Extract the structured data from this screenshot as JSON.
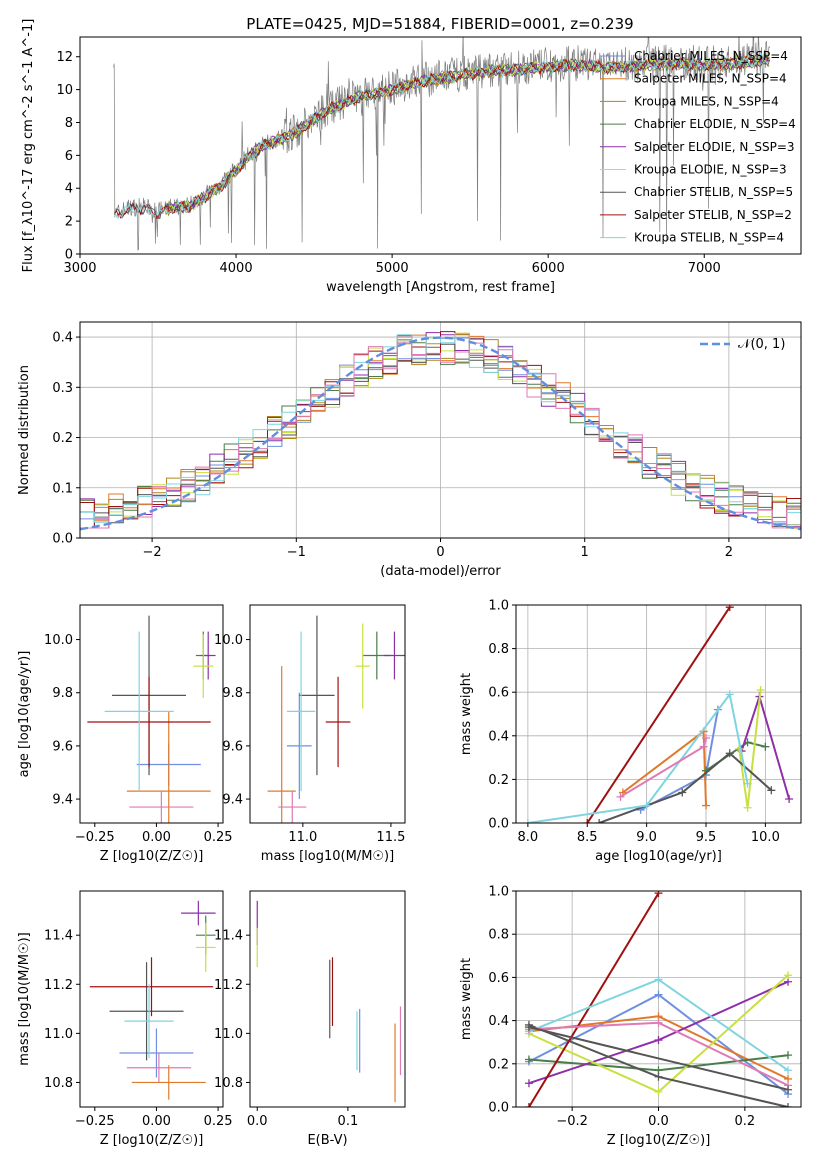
{
  "figure_title": "PLATE=0425, MJD=51884, FIBERID=0001, z=0.239",
  "colors": {
    "models": [
      "#6f8fe0",
      "#e07a2a",
      "#b0861c",
      "#4a7d4a",
      "#8e2fa8",
      "#c8e040",
      "#555555",
      "#a01010",
      "#7fd4e0"
    ],
    "data_gray": "#7f7f7f",
    "normal": "#5f8fe0",
    "pink": "#e07ab4"
  },
  "chart_data": [
    {
      "id": "spectrum",
      "type": "line",
      "title": "PLATE=0425, MJD=51884, FIBERID=0001, z=0.239",
      "xlabel": "wavelength [Angstrom, rest frame]",
      "ylabel": "Flux [f_λ10^-17 erg cm^-2 s^-1 A^-1]",
      "xlim": [
        3000,
        7620
      ],
      "ylim": [
        0,
        13.2
      ],
      "xticks": [
        "3000",
        "4000",
        "5000",
        "6000",
        "7000"
      ],
      "yticks": [
        "0",
        "2",
        "4",
        "6",
        "8",
        "10",
        "12"
      ],
      "legend_placement": "upper-right",
      "series": [
        {
          "name": "Chabrier MILES, N_SSP=4"
        },
        {
          "name": "Salpeter MILES, N_SSP=4"
        },
        {
          "name": "Kroupa MILES, N_SSP=4"
        },
        {
          "name": "Chabrier ELODIE, N_SSP=4"
        },
        {
          "name": "Salpeter ELODIE, N_SSP=3"
        },
        {
          "name": "Kroupa ELODIE, N_SSP=3"
        },
        {
          "name": "Chabrier STELIB, N_SSP=5"
        },
        {
          "name": "Salpeter STELIB, N_SSP=2"
        },
        {
          "name": "Kroupa STELIB, N_SSP=4"
        }
      ],
      "continuum": {
        "x": [
          3220,
          3300,
          3400,
          3500,
          3600,
          3700,
          3800,
          3900,
          4000,
          4100,
          4200,
          4300,
          4400,
          4500,
          4600,
          4800,
          5000,
          5200,
          5400,
          5600,
          5800,
          6000,
          6200,
          6400,
          6600,
          6800,
          7000,
          7200,
          7400
        ],
        "y": [
          2.4,
          2.8,
          2.9,
          2.6,
          2.9,
          3.0,
          3.6,
          4.2,
          5.2,
          6.2,
          6.8,
          7.1,
          7.6,
          8.3,
          8.9,
          9.7,
          10.1,
          10.6,
          10.9,
          11.2,
          11.3,
          11.5,
          11.6,
          11.4,
          11.6,
          11.7,
          11.6,
          11.7,
          11.9
        ]
      },
      "grid": false
    },
    {
      "id": "residuals",
      "type": "histogram",
      "xlabel": "(data-model)/error",
      "ylabel": "Normed distribution",
      "xlim": [
        -2.5,
        2.5
      ],
      "ylim": [
        0,
        0.43
      ],
      "xticks": [
        "−2",
        "−1",
        "0",
        "1",
        "2"
      ],
      "yticks": [
        "0.0",
        "0.1",
        "0.2",
        "0.3",
        "0.4"
      ],
      "legend": "𝒩(0, 1)",
      "legend_placement": "upper-right",
      "grid": true
    },
    {
      "id": "age_vs_Z",
      "type": "scatter",
      "xlabel": "Z [log10(Z/Z☉)]",
      "ylabel": "age  [log10(age/yr)]",
      "xlim": [
        -0.31,
        0.27
      ],
      "ylim": [
        9.31,
        10.13
      ],
      "xticks": [
        "−0.25",
        "0.00",
        "0.25"
      ],
      "yticks": [
        "9.4",
        "9.6",
        "9.8",
        "10.0"
      ],
      "points": [
        {
          "x": 0.05,
          "y": 9.53,
          "xe": 0.13,
          "ye": 0.08,
          "c": 0
        },
        {
          "x": 0.05,
          "y": 9.43,
          "xe": 0.17,
          "ye": 0.3,
          "c": 1
        },
        {
          "x": 0.19,
          "y": 9.94,
          "xe": 0.03,
          "ye": 0.09,
          "c": 3
        },
        {
          "x": 0.21,
          "y": 9.94,
          "xe": 0.03,
          "ye": 0.09,
          "c": 4
        },
        {
          "x": 0.19,
          "y": 9.9,
          "xe": 0.04,
          "ye": 0.12,
          "c": 5
        },
        {
          "x": -0.03,
          "y": 9.79,
          "xe": 0.15,
          "ye": 0.3,
          "c": 6
        },
        {
          "x": -0.03,
          "y": 9.69,
          "xe": 0.25,
          "ye": 0.17,
          "c": 7
        },
        {
          "x": -0.07,
          "y": 9.73,
          "xe": 0.14,
          "ye": 0.3,
          "c": 8
        },
        {
          "x": 0.02,
          "y": 9.37,
          "xe": 0.13,
          "ye": 0.06,
          "c": 9
        }
      ]
    },
    {
      "id": "age_vs_mass",
      "type": "scatter",
      "xlabel": "mass [log10(M/M☉)]",
      "ylabel": "",
      "xlim": [
        10.7,
        11.58
      ],
      "ylim": [
        9.31,
        10.13
      ],
      "xticks": [
        "11.0",
        "11.5"
      ],
      "yticks": [
        "9.4",
        "9.6",
        "9.8",
        "10.0"
      ],
      "points": [
        {
          "x": 10.98,
          "y": 9.6,
          "xe": 0.07,
          "ye": 0.2,
          "c": 0
        },
        {
          "x": 10.88,
          "y": 9.43,
          "xe": 0.08,
          "ye": 0.47,
          "c": 1
        },
        {
          "x": 11.42,
          "y": 9.94,
          "xe": 0.08,
          "ye": 0.09,
          "c": 3
        },
        {
          "x": 11.52,
          "y": 9.94,
          "xe": 0.06,
          "ye": 0.09,
          "c": 4
        },
        {
          "x": 11.34,
          "y": 9.9,
          "xe": 0.04,
          "ye": 0.16,
          "c": 5
        },
        {
          "x": 11.08,
          "y": 9.79,
          "xe": 0.1,
          "ye": 0.3,
          "c": 6
        },
        {
          "x": 11.2,
          "y": 9.69,
          "xe": 0.07,
          "ye": 0.17,
          "c": 7
        },
        {
          "x": 10.99,
          "y": 9.73,
          "xe": 0.08,
          "ye": 0.3,
          "c": 8
        },
        {
          "x": 10.94,
          "y": 9.37,
          "xe": 0.08,
          "ye": 0.06,
          "c": 9
        }
      ]
    },
    {
      "id": "weight_vs_age",
      "type": "line",
      "xlabel": "age  [log10(age/yr)]",
      "ylabel": "mass weight",
      "xlim": [
        7.9,
        10.3
      ],
      "ylim": [
        0,
        1.0
      ],
      "xticks": [
        "8.0",
        "8.5",
        "9.0",
        "9.5",
        "10.0"
      ],
      "yticks": [
        "0.0",
        "0.2",
        "0.4",
        "0.6",
        "0.8",
        "1.0"
      ],
      "grid": true,
      "series": [
        {
          "c": 0,
          "x": [
            8.95,
            9.5,
            9.6
          ],
          "y": [
            0.06,
            0.22,
            0.52
          ]
        },
        {
          "c": 1,
          "x": [
            8.8,
            9.48,
            9.5
          ],
          "y": [
            0.14,
            0.42,
            0.08
          ]
        },
        {
          "c": 3,
          "x": [
            9.5,
            9.85,
            10.0
          ],
          "y": [
            0.24,
            0.37,
            0.35
          ]
        },
        {
          "c": 4,
          "x": [
            9.8,
            9.95,
            10.2
          ],
          "y": [
            0.33,
            0.58,
            0.11
          ]
        },
        {
          "c": 5,
          "x": [
            9.78,
            9.85,
            9.96
          ],
          "y": [
            0.34,
            0.07,
            0.61
          ]
        },
        {
          "c": 6,
          "x": [
            8.6,
            9.3,
            9.7,
            10.05
          ],
          "y": [
            0.0,
            0.14,
            0.32,
            0.15
          ]
        },
        {
          "c": 7,
          "x": [
            8.5,
            9.7
          ],
          "y": [
            0.0,
            0.99
          ]
        },
        {
          "c": 8,
          "x": [
            8.0,
            9.0,
            9.7,
            9.85
          ],
          "y": [
            0.0,
            0.08,
            0.59,
            0.18
          ]
        },
        {
          "c": 9,
          "x": [
            8.78,
            9.48,
            9.5
          ],
          "y": [
            0.12,
            0.35,
            0.39
          ]
        }
      ]
    },
    {
      "id": "mass_vs_Z",
      "type": "scatter",
      "xlabel": "Z [log10(Z/Z☉)]",
      "ylabel": "mass [log10(M/M☉)]",
      "xlim": [
        -0.31,
        0.27
      ],
      "ylim": [
        10.7,
        11.58
      ],
      "xticks": [
        "−0.25",
        "0.00",
        "0.25"
      ],
      "yticks": [
        "10.8",
        "11.0",
        "11.2",
        "11.4"
      ],
      "points": [
        {
          "x": 0.0,
          "y": 10.92,
          "xe": 0.15,
          "ye": 0.1,
          "c": 0
        },
        {
          "x": 0.05,
          "y": 10.8,
          "xe": 0.15,
          "ye": 0.07,
          "c": 1
        },
        {
          "x": 0.2,
          "y": 11.4,
          "xe": 0.04,
          "ye": 0.08,
          "c": 3
        },
        {
          "x": 0.17,
          "y": 11.49,
          "xe": 0.07,
          "ye": 0.05,
          "c": 4
        },
        {
          "x": 0.2,
          "y": 11.35,
          "xe": 0.04,
          "ye": 0.1,
          "c": 5
        },
        {
          "x": -0.04,
          "y": 11.09,
          "xe": 0.15,
          "ye": 0.2,
          "c": 6
        },
        {
          "x": -0.02,
          "y": 11.19,
          "xe": 0.25,
          "ye": 0.12,
          "c": 7
        },
        {
          "x": -0.03,
          "y": 11.05,
          "xe": 0.1,
          "ye": 0.15,
          "c": 8
        },
        {
          "x": 0.01,
          "y": 10.86,
          "xe": 0.13,
          "ye": 0.06,
          "c": 9
        }
      ]
    },
    {
      "id": "mass_vs_ebv",
      "type": "scatter",
      "xlabel": "E(B-V)",
      "ylabel": "",
      "xlim": [
        -0.008,
        0.163
      ],
      "ylim": [
        10.7,
        11.58
      ],
      "xticks": [
        "0.0",
        "0.1"
      ],
      "yticks": [
        "10.8",
        "11.0",
        "11.2",
        "11.4"
      ],
      "points": [
        {
          "x": 0.0,
          "y": 11.45,
          "ye": 0.09,
          "c": 4
        },
        {
          "x": 0.0,
          "y": 11.35,
          "ye": 0.08,
          "c": 5
        },
        {
          "x": 0.08,
          "y": 11.14,
          "ye": 0.16,
          "c": 6
        },
        {
          "x": 0.083,
          "y": 11.17,
          "ye": 0.14,
          "c": 7
        },
        {
          "x": 0.11,
          "y": 10.97,
          "ye": 0.12,
          "c": 8
        },
        {
          "x": 0.113,
          "y": 10.97,
          "ye": 0.13,
          "c": 0
        },
        {
          "x": 0.152,
          "y": 10.88,
          "ye": 0.16,
          "c": 1
        },
        {
          "x": 0.158,
          "y": 10.97,
          "ye": 0.14,
          "c": 9
        }
      ]
    },
    {
      "id": "weight_vs_Z",
      "type": "line",
      "xlabel": "Z [log10(Z/Z☉)]",
      "ylabel": "mass weight",
      "xlim": [
        -0.33,
        0.33
      ],
      "ylim": [
        0,
        1.0
      ],
      "xticks": [
        "−0.2",
        "0.0",
        "0.2"
      ],
      "yticks": [
        "0.0",
        "0.2",
        "0.4",
        "0.6",
        "0.8",
        "1.0"
      ],
      "grid": true,
      "series": [
        {
          "c": 0,
          "x": [
            -0.3,
            0.0,
            0.3
          ],
          "y": [
            0.21,
            0.52,
            0.06
          ]
        },
        {
          "c": 1,
          "x": [
            -0.3,
            0.0,
            0.3
          ],
          "y": [
            0.35,
            0.42,
            0.13
          ]
        },
        {
          "c": 3,
          "x": [
            -0.3,
            0.0,
            0.3
          ],
          "y": [
            0.22,
            0.17,
            0.24
          ]
        },
        {
          "c": 4,
          "x": [
            -0.3,
            0.0,
            0.3
          ],
          "y": [
            0.11,
            0.31,
            0.58
          ]
        },
        {
          "c": 5,
          "x": [
            -0.3,
            0.0,
            0.3
          ],
          "y": [
            0.34,
            0.07,
            0.61
          ]
        },
        {
          "c": 6,
          "x": [
            -0.3,
            0.0,
            0.3
          ],
          "y": [
            0.38,
            0.14,
            0.0
          ]
        },
        {
          "c": 7,
          "x": [
            -0.3,
            0.0
          ],
          "y": [
            0.0,
            0.99
          ]
        },
        {
          "c": 8,
          "x": [
            -0.3,
            0.0,
            0.3
          ],
          "y": [
            0.35,
            0.59,
            0.17
          ]
        },
        {
          "c": 9,
          "x": [
            -0.3,
            0.0,
            0.3
          ],
          "y": [
            0.36,
            0.39,
            0.1
          ]
        },
        {
          "c": 6,
          "x": [
            -0.3,
            0.3
          ],
          "y": [
            0.37,
            0.08
          ]
        }
      ]
    }
  ]
}
